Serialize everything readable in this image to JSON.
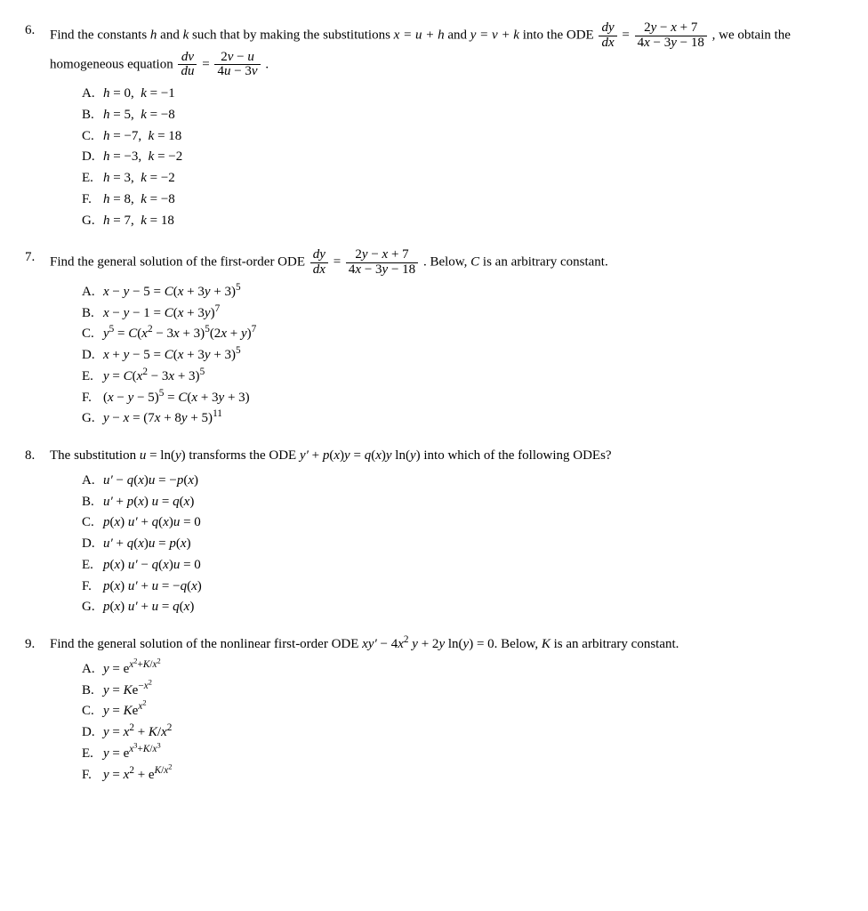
{
  "problems": [
    {
      "number": "6.",
      "stem_html": "Find the constants <span class='math'>h</span> and <span class='math'>k</span> such that by making the substitutions <span class='math'>x = u + h</span> and <span class='math'>y = v + k</span> into the ODE <span class='frac'><span class='top'><span class='math'>dy</span></span><span class='bot'><span class='math'>dx</span></span></span> = <span class='frac'><span class='top'>2<span class='math'>y</span> − <span class='math'>x</span> + 7</span><span class='bot'>4<span class='math'>x</span> − 3<span class='math'>y</span> − 18</span></span> , we obtain the homogeneous equation <span class='frac'><span class='top'><span class='math'>dv</span></span><span class='bot'><span class='math'>du</span></span></span> = <span class='frac'><span class='top'>2<span class='math'>v</span> − <span class='math'>u</span></span><span class='bot'>4<span class='math'>u</span> − 3<span class='math'>v</span></span></span> .",
      "options": [
        "<span class='math'>h</span> = 0,&nbsp; <span class='math'>k</span> = −1",
        "<span class='math'>h</span> = 5,&nbsp; <span class='math'>k</span> = −8",
        "<span class='math'>h</span> = −7,&nbsp; <span class='math'>k</span> = 18",
        "<span class='math'>h</span> = −3,&nbsp; <span class='math'>k</span> = −2",
        "<span class='math'>h</span> = 3,&nbsp; <span class='math'>k</span> = −2",
        "<span class='math'>h</span> = 8,&nbsp; <span class='math'>k</span> = −8",
        "<span class='math'>h</span> = 7,&nbsp; <span class='math'>k</span> = 18"
      ]
    },
    {
      "number": "7.",
      "stem_html": "Find the general solution of the first-order ODE <span class='frac'><span class='top'><span class='math'>dy</span></span><span class='bot'><span class='math'>dx</span></span></span> = <span class='frac'><span class='top'>2<span class='math'>y</span> − <span class='math'>x</span> + 7</span><span class='bot'>4<span class='math'>x</span> − 3<span class='math'>y</span> − 18</span></span> . Below, <span class='math'>C</span> is an arbitrary constant.",
      "options": [
        "<span class='math'>x</span> − <span class='math'>y</span> − 5 = <span class='math'>C</span>(<span class='math'>x</span> + 3<span class='math'>y</span> + 3)<sup>5</sup>",
        "<span class='math'>x</span> − <span class='math'>y</span> − 1 = <span class='math'>C</span>(<span class='math'>x</span> + 3<span class='math'>y</span>)<sup>7</sup>",
        "<span class='math'>y</span><sup>5</sup> = <span class='math'>C</span>(<span class='math'>x</span><sup>2</sup> − 3<span class='math'>x</span> + 3)<sup>5</sup>(2<span class='math'>x</span> + <span class='math'>y</span>)<sup>7</sup>",
        "<span class='math'>x</span> + <span class='math'>y</span> − 5 = <span class='math'>C</span>(<span class='math'>x</span> + 3<span class='math'>y</span> + 3)<sup>5</sup>",
        "<span class='math'>y</span> = <span class='math'>C</span>(<span class='math'>x</span><sup>2</sup> − 3<span class='math'>x</span> + 3)<sup>5</sup>",
        "(<span class='math'>x</span> − <span class='math'>y</span> − 5)<sup>5</sup> = <span class='math'>C</span>(<span class='math'>x</span> + 3<span class='math'>y</span> + 3)",
        "<span class='math'>y</span> − <span class='math'>x</span> = (7<span class='math'>x</span> + 8<span class='math'>y</span> + 5)<sup>11</sup>"
      ]
    },
    {
      "number": "8.",
      "stem_html": "The substitution <span class='math'>u</span> = ln(<span class='math'>y</span>) transforms the ODE <span class='math'>y′</span> + <span class='math'>p</span>(<span class='math'>x</span>)<span class='math'>y</span> = <span class='math'>q</span>(<span class='math'>x</span>)<span class='math'>y</span> ln(<span class='math'>y</span>) into which of the following ODEs?",
      "options": [
        "<span class='math'>u′</span> − <span class='math'>q</span>(<span class='math'>x</span>)<span class='math'>u</span> = −<span class='math'>p</span>(<span class='math'>x</span>)",
        "<span class='math'>u′</span> + <span class='math'>p</span>(<span class='math'>x</span>) <span class='math'>u</span> = <span class='math'>q</span>(<span class='math'>x</span>)",
        "<span class='math'>p</span>(<span class='math'>x</span>) <span class='math'>u′</span> + <span class='math'>q</span>(<span class='math'>x</span>)<span class='math'>u</span> = 0",
        "<span class='math'>u′</span> + <span class='math'>q</span>(<span class='math'>x</span>)<span class='math'>u</span> = <span class='math'>p</span>(<span class='math'>x</span>)",
        "<span class='math'>p</span>(<span class='math'>x</span>) <span class='math'>u′</span> − <span class='math'>q</span>(<span class='math'>x</span>)<span class='math'>u</span> = 0",
        "<span class='math'>p</span>(<span class='math'>x</span>) <span class='math'>u′</span> + <span class='math'>u</span> = −<span class='math'>q</span>(<span class='math'>x</span>)",
        "<span class='math'>p</span>(<span class='math'>x</span>) <span class='math'>u′</span> + <span class='math'>u</span> = <span class='math'>q</span>(<span class='math'>x</span>)"
      ]
    },
    {
      "number": "9.",
      "stem_html": "Find the general solution of the nonlinear first-order ODE <span class='math'>xy′</span> − 4<span class='math'>x</span><sup>2</sup> <span class='math'>y</span> + 2<span class='math'>y</span> ln(<span class='math'>y</span>) = 0. Below, <span class='math'>K</span> is an arbitrary constant.",
      "options": [
        "<span class='math'>y</span> = e<sup><span class='math'>x</span><sup>2</sup>+<span class='math'>K</span>/<span class='math'>x</span><sup>2</sup></sup>",
        "<span class='math'>y</span> = <span class='math'>K</span>e<sup>−<span class='math'>x</span><sup>2</sup></sup>",
        "<span class='math'>y</span> = <span class='math'>K</span>e<sup><span class='math'>x</span><sup>2</sup></sup>",
        "<span class='math'>y</span> = <span class='math'>x</span><sup>2</sup> + <span class='math'>K</span>/<span class='math'>x</span><sup>2</sup>",
        "<span class='math'>y</span> = e<sup><span class='math'>x</span><sup>3</sup>+<span class='math'>K</span>/<span class='math'>x</span><sup>3</sup></sup>",
        "<span class='math'>y</span> = <span class='math'>x</span><sup>2</sup> + e<sup><span class='math'>K</span>/<span class='math'>x</span><sup>2</sup></sup>"
      ]
    }
  ],
  "option_labels": [
    "A.",
    "B.",
    "C.",
    "D.",
    "E.",
    "F.",
    "G."
  ],
  "style": {
    "font_family": "Times New Roman",
    "font_size_pt": 11,
    "text_color": "#000000",
    "background_color": "#ffffff"
  }
}
